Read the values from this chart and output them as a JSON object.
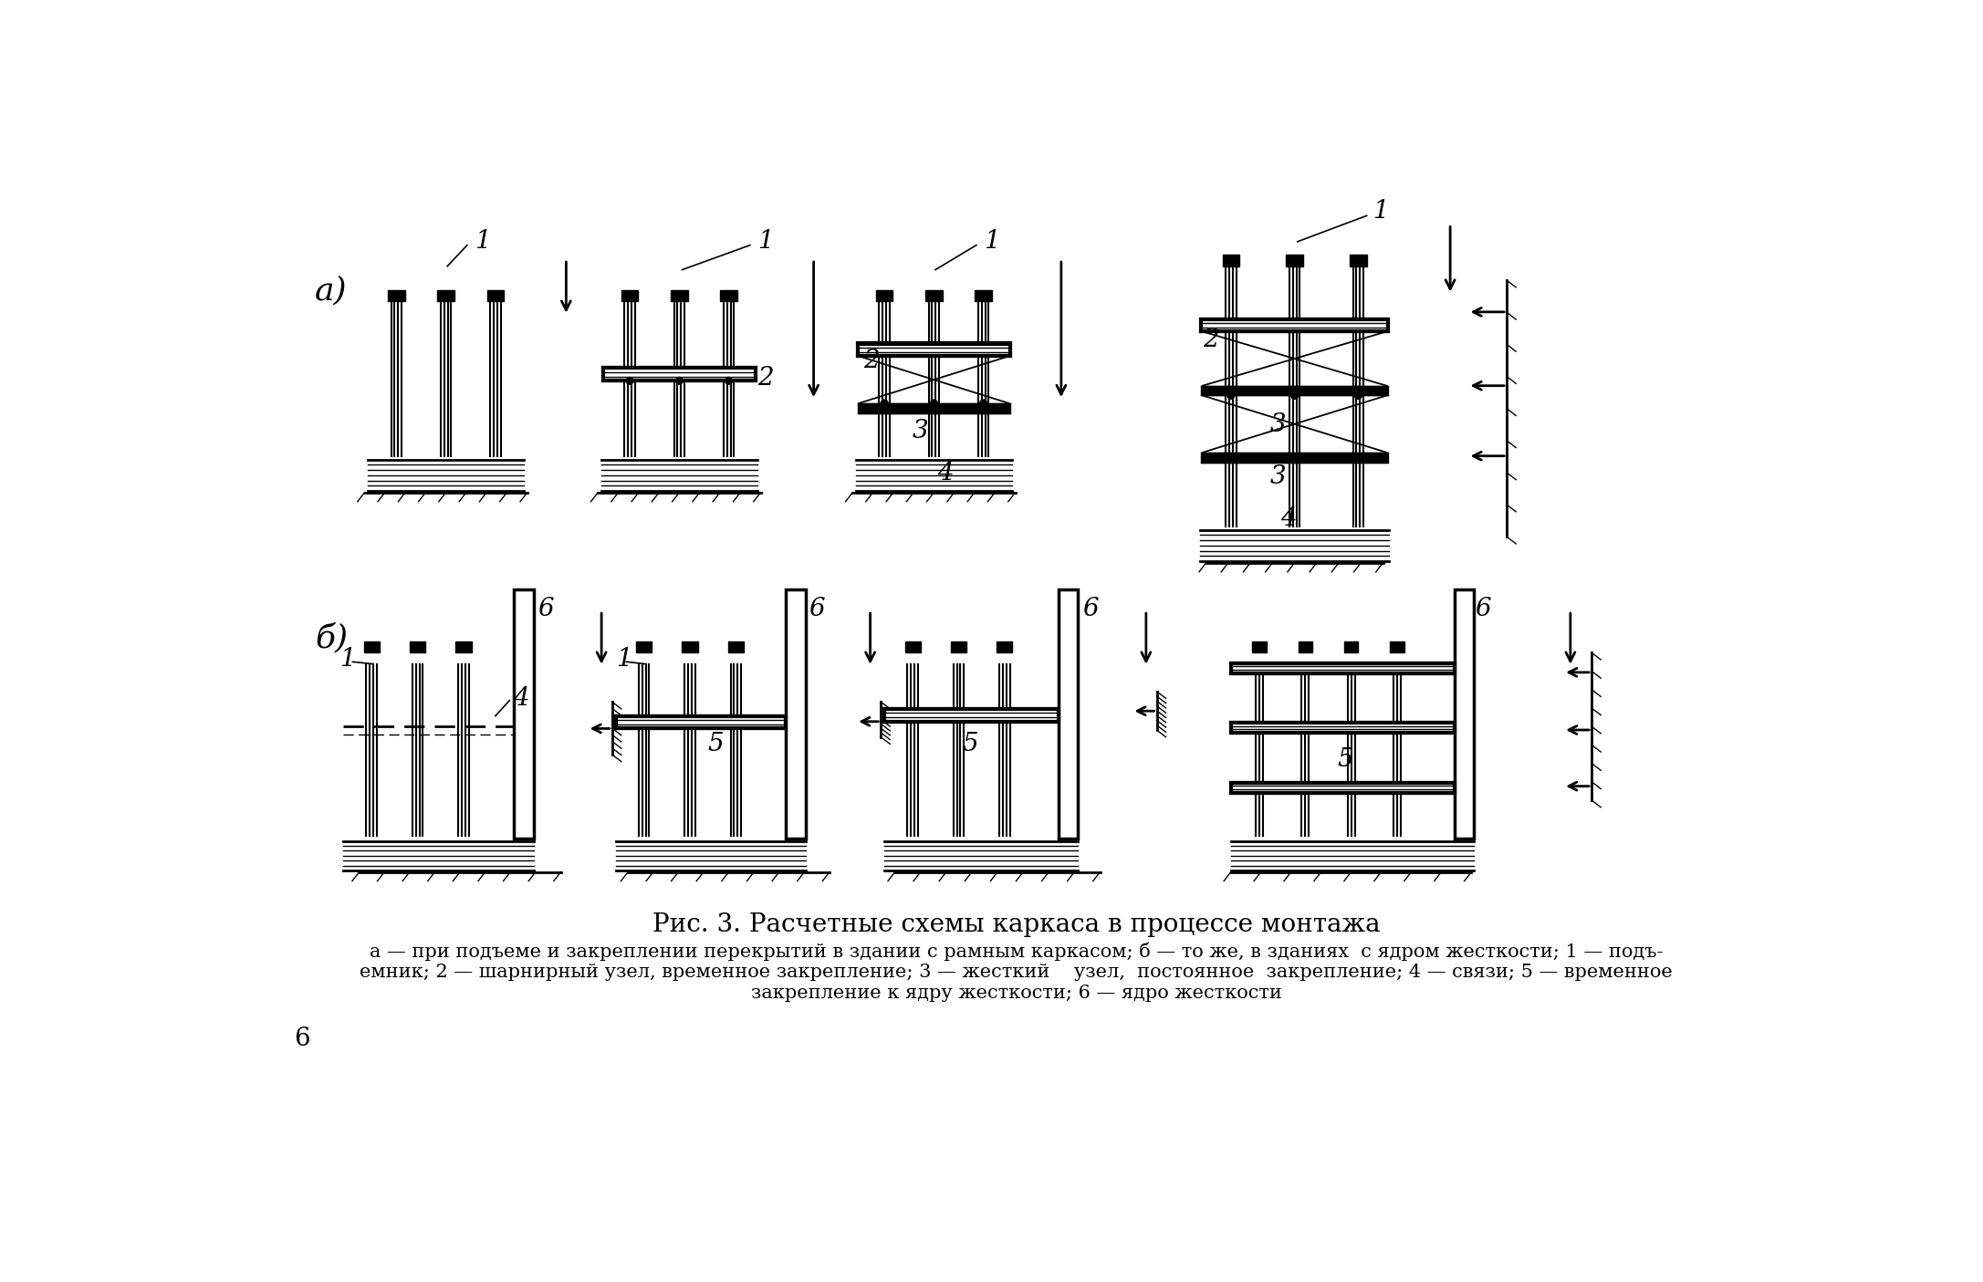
{
  "title": "Рис. 3. Расчетные схемы каркаса в процессе монтажа",
  "cap1": "а — при подъеме и закреплении перекрытий в здании с рамным каркасом; б — то же, в зданиях  с ядром жесткости; 1 — подъ-",
  "cap2": "емник; 2 — шарнирный узел, временное закрепление; 3 — жесткий    узел,  постоянное  закрепление; 4 — связи; 5 — временное",
  "cap3": "закрепление к ядру жесткости; 6 — ядро жесткости",
  "label_a": "а)",
  "label_b": "б)",
  "page_num": "6",
  "bg_color": "#ffffff"
}
